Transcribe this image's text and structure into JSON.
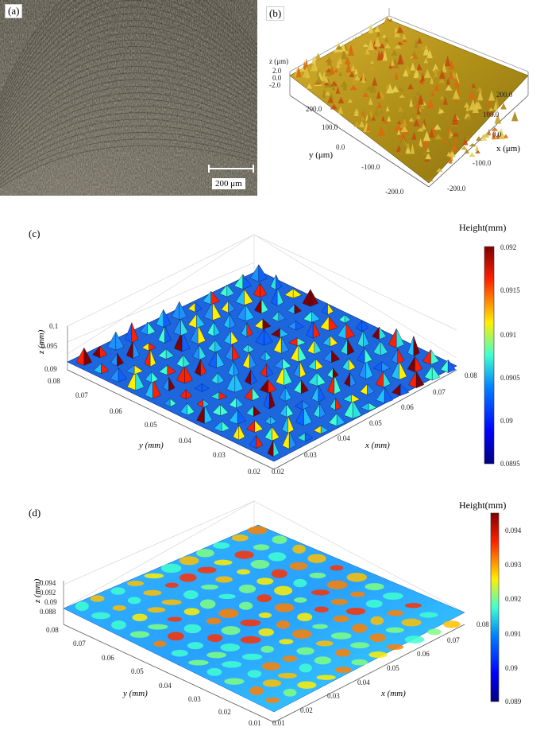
{
  "panels": {
    "a": {
      "label": "(a)",
      "scale_bar": "200 μm"
    },
    "b": {
      "label": "(b)",
      "z_label": "z (μm)",
      "z_ticks": [
        "2.0",
        "0.0",
        "-2.0"
      ],
      "x_label": "x (μm)",
      "x_ticks": [
        "200.0",
        "100.0",
        "0.0",
        "-100.0",
        "-200.0"
      ],
      "y_label": "y (μm)",
      "y_ticks": [
        "200.0",
        "100.0",
        "0.0",
        "-100.0",
        "-200.0"
      ]
    },
    "c": {
      "label": "(c)",
      "colorbar_title": "Height(mm)",
      "colorbar_ticks": [
        "0.092",
        "0.0915",
        "0.091",
        "0.0905",
        "0.09",
        "0.0895"
      ],
      "z_label": "z (mm)",
      "z_ticks": [
        "0.1",
        "0.095",
        "0.09"
      ],
      "y_label": "y (mm)",
      "y_ticks": [
        "0.08",
        "0.07",
        "0.06",
        "0.05",
        "0.04",
        "0.03",
        "0.02"
      ],
      "x_label": "x (mm)",
      "x_ticks": [
        "0.02",
        "0.03",
        "0.04",
        "0.05",
        "0.06",
        "0.07",
        "0.08"
      ]
    },
    "d": {
      "label": "(d)",
      "colorbar_title": "Height(mm)",
      "colorbar_ticks": [
        "0.094",
        "0.093",
        "0.092",
        "0.091",
        "0.09",
        "0.089"
      ],
      "z_label": "z (mm)",
      "z_ticks": [
        "0.094",
        "0.092",
        "0.09",
        "0.088"
      ],
      "y_label": "y (mm)",
      "y_ticks": [
        "0.08",
        "0.07",
        "0.06",
        "0.05",
        "0.04",
        "0.03",
        "0.02",
        "0.01"
      ],
      "x_label": "x (mm)",
      "x_ticks": [
        "0.01",
        "0.02",
        "0.03",
        "0.04",
        "0.05",
        "0.06",
        "0.07",
        "0.08"
      ]
    }
  },
  "colors": {
    "jet_dark_red": "#7f0000",
    "jet_red": "#ff2000",
    "jet_yellow": "#ffee00",
    "jet_cyan": "#40ffd0",
    "jet_blue": "#0040ff",
    "jet_dark_blue": "#00007f",
    "gold_surface": "#c8a020"
  }
}
